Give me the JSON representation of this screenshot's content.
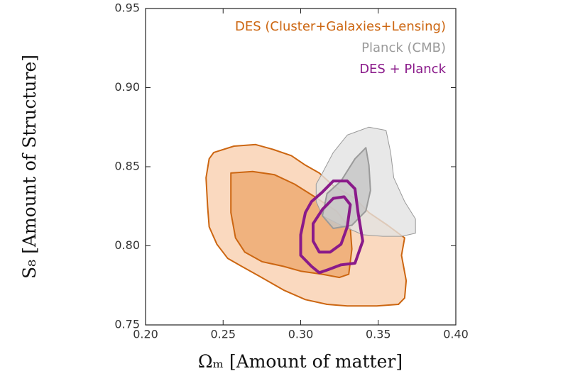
{
  "chart_data": {
    "type": "contour",
    "xlabel": "Ωₘ [Amount of matter]",
    "ylabel": "S₈ [Amount of Structure]",
    "xlim": [
      0.2,
      0.4
    ],
    "ylim": [
      0.75,
      0.95
    ],
    "xticks": [
      {
        "value": 0.2,
        "label": "0.20"
      },
      0.25,
      {
        "value": 0.3,
        "label": "0.30"
      },
      0.35,
      {
        "value": 0.4,
        "label": "0.40"
      }
    ],
    "yticks": [
      0.75,
      {
        "value": 0.8,
        "label": "0.80"
      },
      0.85,
      {
        "value": 0.9,
        "label": "0.90"
      },
      0.95
    ],
    "legend": "upper right",
    "series": [
      {
        "name": "DES (Cluster+Galaxies+Lensing)",
        "color": "#cc6611",
        "fills": [
          "#fad9bf",
          "#f0b27e"
        ],
        "levels": [
          {
            "x": [
              0.244,
              0.257,
              0.271,
              0.282,
              0.294,
              0.303,
              0.312,
              0.321,
              0.335,
              0.344,
              0.356,
              0.367,
              0.365,
              0.368,
              0.367,
              0.363,
              0.349,
              0.33,
              0.317,
              0.303,
              0.289,
              0.273,
              0.262,
              0.253,
              0.246,
              0.241,
              0.24,
              0.239,
              0.241
            ],
            "y": [
              0.859,
              0.863,
              0.864,
              0.861,
              0.857,
              0.851,
              0.846,
              0.838,
              0.83,
              0.821,
              0.813,
              0.805,
              0.794,
              0.778,
              0.767,
              0.763,
              0.762,
              0.762,
              0.763,
              0.766,
              0.772,
              0.781,
              0.787,
              0.792,
              0.801,
              0.812,
              0.825,
              0.843,
              0.855
            ]
          },
          {
            "x": [
              0.255,
              0.269,
              0.283,
              0.296,
              0.309,
              0.323,
              0.332,
              0.333,
              0.331,
              0.325,
              0.314,
              0.3,
              0.289,
              0.275,
              0.264,
              0.258,
              0.255,
              0.255
            ],
            "y": [
              0.846,
              0.847,
              0.845,
              0.839,
              0.831,
              0.822,
              0.811,
              0.798,
              0.782,
              0.78,
              0.782,
              0.784,
              0.787,
              0.79,
              0.796,
              0.805,
              0.821,
              0.837
            ]
          }
        ]
      },
      {
        "name": "Planck (CMB)",
        "color": "#9a9a9a",
        "fills": [
          "#e2e2e2",
          "#c4c4c4"
        ],
        "levels": [
          {
            "x": [
              0.314,
              0.321,
              0.33,
              0.344,
              0.355,
              0.358,
              0.36,
              0.367,
              0.374,
              0.374,
              0.365,
              0.353,
              0.34,
              0.326,
              0.314,
              0.31,
              0.31
            ],
            "y": [
              0.846,
              0.859,
              0.87,
              0.875,
              0.873,
              0.859,
              0.843,
              0.828,
              0.817,
              0.808,
              0.806,
              0.806,
              0.807,
              0.813,
              0.819,
              0.828,
              0.839
            ]
          },
          {
            "x": [
              0.326,
              0.335,
              0.342,
              0.344,
              0.345,
              0.342,
              0.333,
              0.321,
              0.314,
              0.317
            ],
            "y": [
              0.841,
              0.855,
              0.862,
              0.851,
              0.835,
              0.822,
              0.813,
              0.811,
              0.819,
              0.833
            ]
          }
        ]
      },
      {
        "name": "DES + Planck",
        "color": "#8a1a8a",
        "fills": null,
        "levels": [
          {
            "x": [
              0.314,
              0.321,
              0.33,
              0.335,
              0.337,
              0.34,
              0.335,
              0.326,
              0.318,
              0.312,
              0.307,
              0.3,
              0.3,
              0.303,
              0.307
            ],
            "y": [
              0.834,
              0.841,
              0.841,
              0.836,
              0.821,
              0.803,
              0.789,
              0.788,
              0.785,
              0.783,
              0.787,
              0.794,
              0.807,
              0.821,
              0.828
            ]
          },
          {
            "x": [
              0.314,
              0.321,
              0.328,
              0.332,
              0.33,
              0.326,
              0.319,
              0.312,
              0.308,
              0.308
            ],
            "y": [
              0.823,
              0.83,
              0.831,
              0.826,
              0.812,
              0.801,
              0.796,
              0.796,
              0.803,
              0.814
            ]
          }
        ]
      }
    ]
  }
}
